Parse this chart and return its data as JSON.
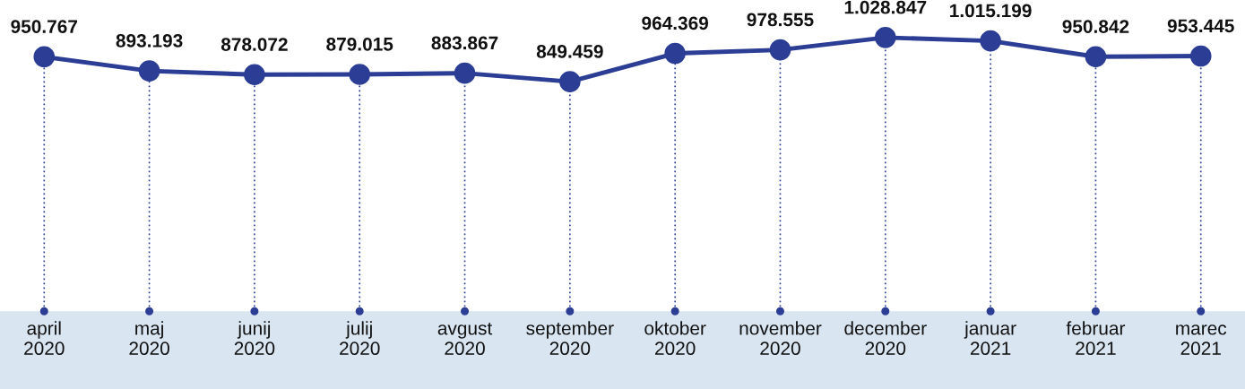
{
  "chart_data": {
    "type": "line",
    "categories": [
      "april\n2020",
      "maj\n2020",
      "junij\n2020",
      "julij\n2020",
      "avgust\n2020",
      "september\n2020",
      "oktober\n2020",
      "november\n2020",
      "december\n2020",
      "januar\n2021",
      "februar\n2021",
      "marec\n2021"
    ],
    "series": [
      {
        "color": "#2b3d94",
        "values": [
          950767,
          893193,
          878072,
          879015,
          883867,
          849459,
          964369,
          978555,
          1028847,
          1015199,
          950842,
          953445
        ],
        "value_labels": [
          "950.767",
          "893.193",
          "878.072",
          "879.015",
          "883.867",
          "849.459",
          "964.369",
          "978.555",
          "1.028.847",
          "1.015.199",
          "950.842",
          "953.445"
        ]
      }
    ],
    "marker": "circle",
    "line_style": "solid",
    "grid": "x",
    "legend": false,
    "tick_labels": "x"
  }
}
